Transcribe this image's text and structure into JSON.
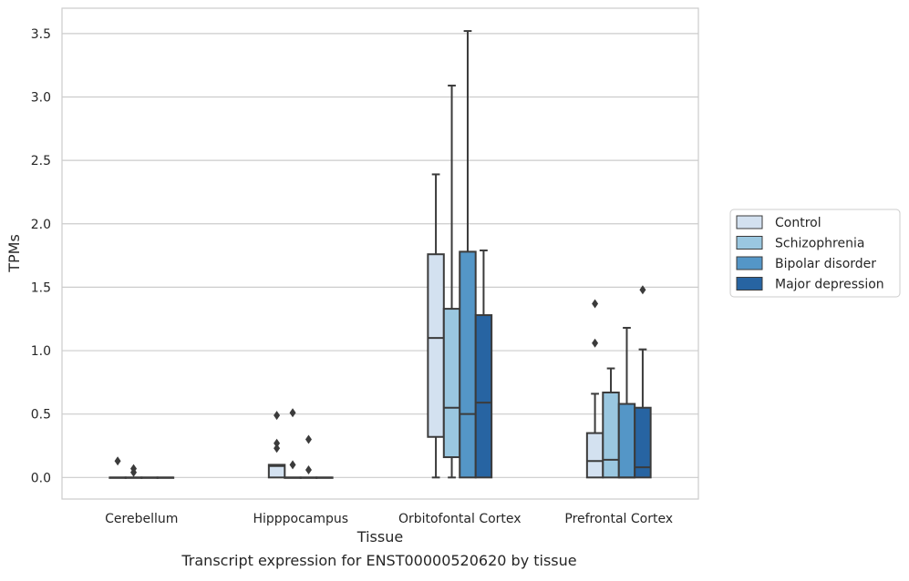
{
  "chart_data": {
    "type": "box",
    "title": "",
    "caption": "Transcript expression for ENST00000520620 by tissue",
    "xlabel": "Tissue",
    "ylabel": "TPMs",
    "ylim": [
      -0.17,
      3.7
    ],
    "yticks": [
      "0.0",
      "0.5",
      "1.0",
      "1.5",
      "2.0",
      "2.5",
      "3.0",
      "3.5"
    ],
    "grid": true,
    "legend_position": "right",
    "categories": [
      "Cerebellum",
      "Hipppocampus",
      "Orbitofontal Cortex",
      "Prefrontal Cortex"
    ],
    "series": [
      {
        "name": "Control",
        "color": "#d3e1f0",
        "boxes": [
          {
            "q1": 0,
            "median": 0,
            "q3": 0,
            "whisker_low": 0,
            "whisker_high": 0,
            "outliers": [
              0.13
            ]
          },
          {
            "q1": 0,
            "median": 0.09,
            "q3": 0.1,
            "whisker_low": 0,
            "whisker_high": 0.1,
            "outliers": [
              0.49,
              0.27,
              0.23
            ]
          },
          {
            "q1": 0.32,
            "median": 1.1,
            "q3": 1.76,
            "whisker_low": 0,
            "whisker_high": 2.39,
            "outliers": []
          },
          {
            "q1": 0,
            "median": 0.13,
            "q3": 0.35,
            "whisker_low": 0,
            "whisker_high": 0.66,
            "outliers": [
              1.37,
              1.06
            ]
          }
        ]
      },
      {
        "name": "Schizophrenia",
        "color": "#9ac7e0",
        "boxes": [
          {
            "q1": 0,
            "median": 0,
            "q3": 0,
            "whisker_low": 0,
            "whisker_high": 0,
            "outliers": [
              0.07,
              0.04
            ]
          },
          {
            "q1": 0,
            "median": 0,
            "q3": 0,
            "whisker_low": 0,
            "whisker_high": 0,
            "outliers": [
              0.51,
              0.1
            ]
          },
          {
            "q1": 0.16,
            "median": 0.55,
            "q3": 1.33,
            "whisker_low": 0,
            "whisker_high": 3.09,
            "outliers": []
          },
          {
            "q1": 0,
            "median": 0.14,
            "q3": 0.67,
            "whisker_low": 0,
            "whisker_high": 0.86,
            "outliers": []
          }
        ]
      },
      {
        "name": "Bipolar disorder",
        "color": "#5496c7",
        "boxes": [
          {
            "q1": 0,
            "median": 0,
            "q3": 0,
            "whisker_low": 0,
            "whisker_high": 0,
            "outliers": []
          },
          {
            "q1": 0,
            "median": 0,
            "q3": 0,
            "whisker_low": 0,
            "whisker_high": 0,
            "outliers": [
              0.3,
              0.06
            ]
          },
          {
            "q1": 0,
            "median": 0.5,
            "q3": 1.78,
            "whisker_low": 0,
            "whisker_high": 3.52,
            "outliers": []
          },
          {
            "q1": 0,
            "median": 0,
            "q3": 0.58,
            "whisker_low": 0,
            "whisker_high": 1.18,
            "outliers": []
          }
        ]
      },
      {
        "name": "Major depression",
        "color": "#2764a2",
        "boxes": [
          {
            "q1": 0,
            "median": 0,
            "q3": 0,
            "whisker_low": 0,
            "whisker_high": 0,
            "outliers": []
          },
          {
            "q1": 0,
            "median": 0,
            "q3": 0,
            "whisker_low": 0,
            "whisker_high": 0,
            "outliers": []
          },
          {
            "q1": 0,
            "median": 0.59,
            "q3": 1.28,
            "whisker_low": 0,
            "whisker_high": 1.79,
            "outliers": []
          },
          {
            "q1": 0,
            "median": 0.08,
            "q3": 0.55,
            "whisker_low": 0,
            "whisker_high": 1.01,
            "outliers": [
              1.48
            ]
          }
        ]
      }
    ]
  }
}
